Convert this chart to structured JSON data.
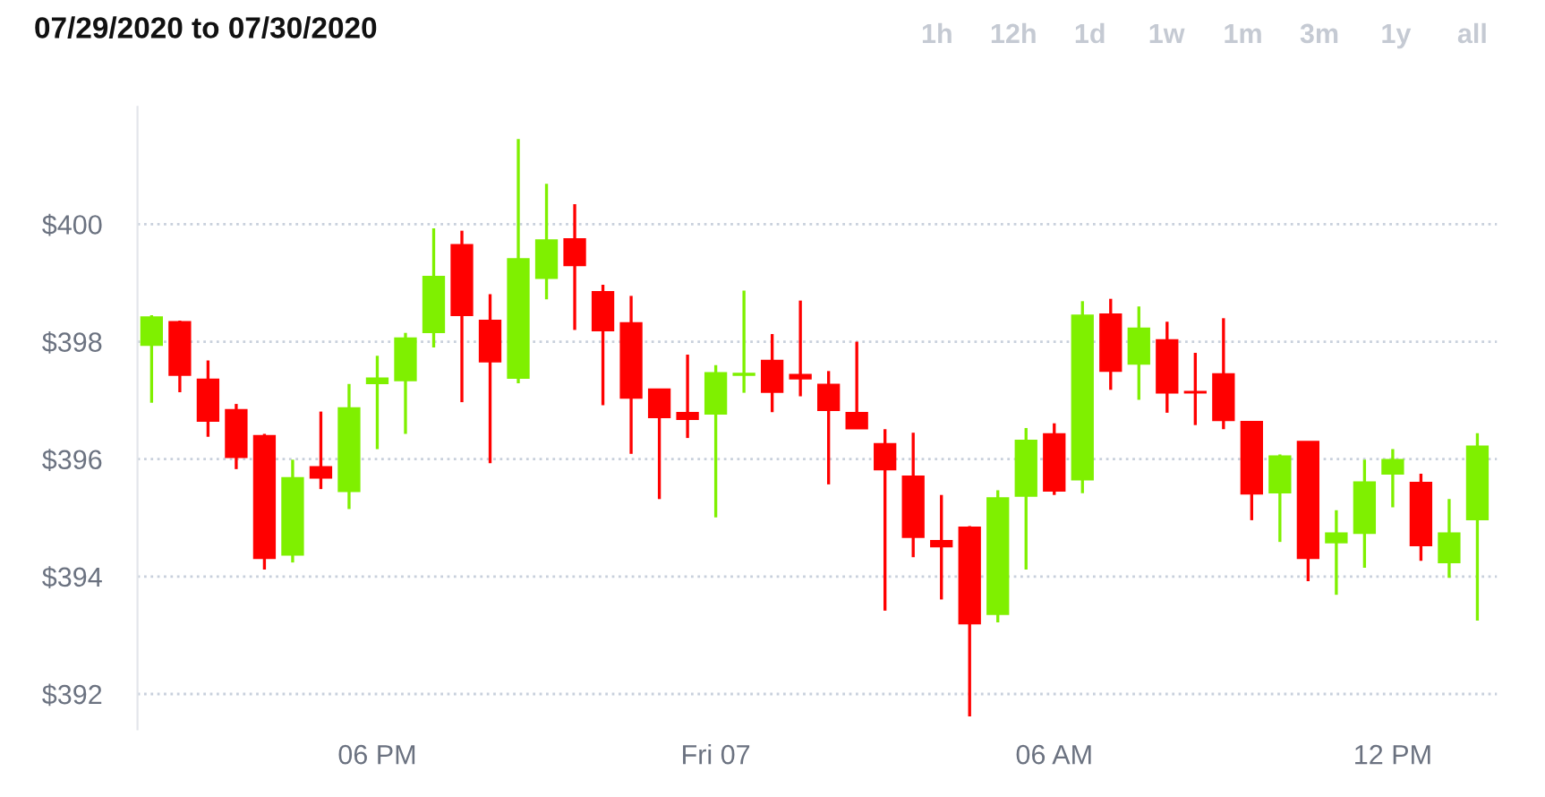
{
  "chart_data": {
    "type": "candlestick",
    "title": "07/29/2020 to 07/30/2020",
    "annotations": [
      "1h",
      "12h",
      "1d",
      "1w",
      "1m",
      "3m",
      "1y",
      "all"
    ],
    "x": [
      "2020-07-29T14:00",
      "2020-07-29T14:30",
      "2020-07-29T15:00",
      "2020-07-29T15:30",
      "2020-07-29T16:00",
      "2020-07-29T16:30",
      "2020-07-29T17:00",
      "2020-07-29T17:30",
      "2020-07-29T18:00",
      "2020-07-29T18:30",
      "2020-07-29T19:00",
      "2020-07-29T19:30",
      "2020-07-29T20:00",
      "2020-07-29T20:30",
      "2020-07-29T21:00",
      "2020-07-29T21:30",
      "2020-07-29T22:00",
      "2020-07-29T22:30",
      "2020-07-29T23:00",
      "2020-07-29T23:30",
      "2020-07-30T00:00",
      "2020-07-30T00:30",
      "2020-07-30T01:00",
      "2020-07-30T01:30",
      "2020-07-30T02:00",
      "2020-07-30T02:30",
      "2020-07-30T03:00",
      "2020-07-30T03:30",
      "2020-07-30T04:00",
      "2020-07-30T04:30",
      "2020-07-30T05:00",
      "2020-07-30T05:30",
      "2020-07-30T06:00",
      "2020-07-30T06:30",
      "2020-07-30T07:00",
      "2020-07-30T07:30",
      "2020-07-30T08:00",
      "2020-07-30T08:30",
      "2020-07-30T09:00",
      "2020-07-30T09:30",
      "2020-07-30T10:00",
      "2020-07-30T10:30",
      "2020-07-30T11:00",
      "2020-07-30T11:30",
      "2020-07-30T12:00",
      "2020-07-30T12:30",
      "2020-07-30T13:00",
      "2020-07-30T13:30"
    ],
    "ohlc": [
      [
        397.94,
        398.45,
        396.96,
        398.42
      ],
      [
        398.34,
        398.36,
        397.14,
        397.43
      ],
      [
        397.36,
        397.68,
        396.38,
        396.65
      ],
      [
        396.84,
        396.94,
        395.83,
        396.03
      ],
      [
        396.4,
        396.43,
        394.12,
        394.31
      ],
      [
        394.37,
        395.99,
        394.24,
        395.68
      ],
      [
        395.87,
        396.81,
        395.49,
        395.68
      ],
      [
        395.45,
        397.28,
        395.15,
        396.87
      ],
      [
        397.29,
        397.76,
        396.17,
        397.38
      ],
      [
        397.34,
        398.15,
        396.43,
        398.06
      ],
      [
        398.16,
        399.93,
        397.9,
        399.11
      ],
      [
        399.65,
        399.89,
        396.97,
        398.45
      ],
      [
        398.36,
        398.81,
        395.93,
        397.66
      ],
      [
        397.38,
        401.45,
        397.29,
        399.41
      ],
      [
        399.08,
        400.69,
        398.72,
        399.73
      ],
      [
        399.75,
        400.34,
        398.2,
        399.3
      ],
      [
        398.85,
        398.97,
        396.92,
        398.19
      ],
      [
        398.32,
        398.78,
        396.09,
        397.04
      ],
      [
        397.19,
        397.19,
        395.32,
        396.71
      ],
      [
        396.79,
        397.78,
        396.36,
        396.68
      ],
      [
        396.77,
        397.6,
        395.01,
        397.47
      ],
      [
        397.43,
        398.87,
        397.13,
        397.46
      ],
      [
        397.68,
        398.13,
        396.8,
        397.14
      ],
      [
        397.44,
        398.7,
        397.07,
        397.37
      ],
      [
        397.27,
        397.5,
        395.57,
        396.83
      ],
      [
        396.79,
        398.0,
        396.52,
        396.52
      ],
      [
        396.26,
        396.51,
        393.42,
        395.82
      ],
      [
        395.71,
        396.45,
        394.33,
        394.67
      ],
      [
        394.61,
        395.39,
        393.61,
        394.51
      ],
      [
        394.84,
        394.86,
        391.62,
        393.2
      ],
      [
        393.36,
        395.47,
        393.22,
        395.34
      ],
      [
        395.37,
        396.53,
        394.12,
        396.32
      ],
      [
        396.43,
        396.61,
        395.39,
        395.46
      ],
      [
        395.65,
        398.69,
        395.42,
        398.45
      ],
      [
        398.47,
        398.73,
        397.18,
        397.5
      ],
      [
        397.62,
        398.6,
        397.01,
        398.23
      ],
      [
        398.03,
        398.34,
        396.79,
        397.13
      ],
      [
        397.15,
        397.81,
        396.58,
        397.13
      ],
      [
        397.45,
        398.4,
        396.51,
        396.66
      ],
      [
        396.64,
        396.64,
        394.96,
        395.41
      ],
      [
        395.43,
        396.08,
        394.59,
        396.05
      ],
      [
        396.3,
        396.3,
        393.92,
        394.31
      ],
      [
        394.58,
        395.13,
        393.69,
        394.74
      ],
      [
        394.74,
        395.99,
        394.15,
        395.61
      ],
      [
        395.75,
        396.17,
        395.18,
        395.99
      ],
      [
        395.6,
        395.75,
        394.27,
        394.53
      ],
      [
        394.24,
        395.32,
        393.98,
        394.74
      ],
      [
        394.97,
        396.44,
        393.25,
        396.22
      ]
    ],
    "colors": [
      "#7ff000",
      "#ff0000",
      "#ff0000",
      "#ff0000",
      "#ff0000",
      "#7ff000",
      "#ff0000",
      "#7ff000",
      "#7ff000",
      "#7ff000",
      "#7ff000",
      "#ff0000",
      "#ff0000",
      "#7ff000",
      "#7ff000",
      "#ff0000",
      "#ff0000",
      "#ff0000",
      "#ff0000",
      "#ff0000",
      "#7ff000",
      "#7ff000",
      "#ff0000",
      "#ff0000",
      "#ff0000",
      "#ff0000",
      "#ff0000",
      "#ff0000",
      "#ff0000",
      "#ff0000",
      "#7ff000",
      "#7ff000",
      "#ff0000",
      "#7ff000",
      "#ff0000",
      "#7ff000",
      "#ff0000",
      "#ff0000",
      "#ff0000",
      "#ff0000",
      "#7ff000",
      "#ff0000",
      "#7ff000",
      "#7ff000",
      "#7ff000",
      "#ff0000",
      "#7ff000",
      "#7ff000"
    ],
    "xlim": [
      "2020-07-29T13:45",
      "2020-07-30T13:51"
    ],
    "xticks": [
      {
        "value": "2020-07-29T18:00",
        "label": "06 PM"
      },
      {
        "value": "2020-07-30T00:00",
        "label": "Fri 07"
      },
      {
        "value": "2020-07-30T06:00",
        "label": "06 AM"
      },
      {
        "value": "2020-07-30T12:00",
        "label": "12 PM"
      }
    ],
    "ylim": [
      391.4,
      402
    ],
    "yticks": [
      {
        "value": 392,
        "label": "$392"
      },
      {
        "value": 394,
        "label": "$394"
      },
      {
        "value": 396,
        "label": "$396"
      },
      {
        "value": 398,
        "label": "$398"
      },
      {
        "value": 400,
        "label": "$400"
      }
    ],
    "grid": "y"
  }
}
